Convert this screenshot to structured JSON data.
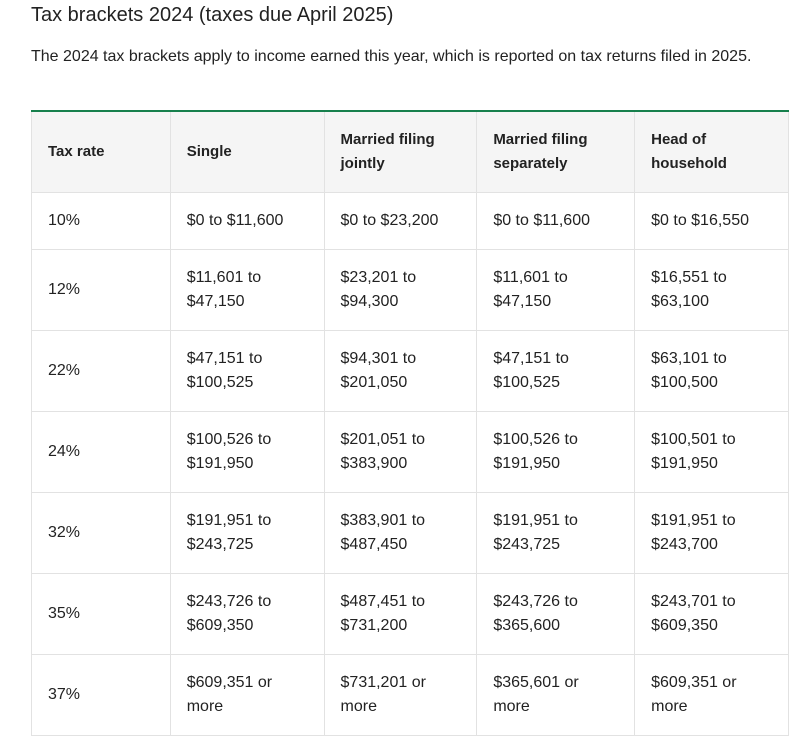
{
  "header": {
    "title": "Tax brackets 2024 (taxes due April 2025)",
    "intro": "The 2024 tax brackets apply to income earned this year, which is reported on tax returns filed in 2025."
  },
  "table": {
    "columns": [
      "Tax rate",
      "Single",
      "Married filing jointly",
      "Married filing separately",
      "Head of household"
    ],
    "rows": [
      [
        "10%",
        "$0 to $11,600",
        "$0 to $23,200",
        "$0 to $11,600",
        "$0 to $16,550"
      ],
      [
        "12%",
        "$11,601 to $47,150",
        "$23,201 to $94,300",
        "$11,601 to $47,150",
        "$16,551 to $63,100"
      ],
      [
        "22%",
        "$47,151 to $100,525",
        "$94,301 to $201,050",
        "$47,151 to $100,525",
        "$63,101 to $100,500"
      ],
      [
        "24%",
        "$100,526 to $191,950",
        "$201,051 to $383,900",
        "$100,526 to $191,950",
        "$100,501 to $191,950"
      ],
      [
        "32%",
        "$191,951 to $243,725",
        "$383,901 to $487,450",
        "$191,951 to $243,725",
        "$191,951 to $243,700"
      ],
      [
        "35%",
        "$243,726 to $609,350",
        "$487,451 to $731,200",
        "$243,726 to $365,600",
        "$243,701 to $609,350"
      ],
      [
        "37%",
        "$609,351 or more",
        "$731,201 or more",
        "$365,601 or more",
        "$609,351 or more"
      ]
    ]
  }
}
